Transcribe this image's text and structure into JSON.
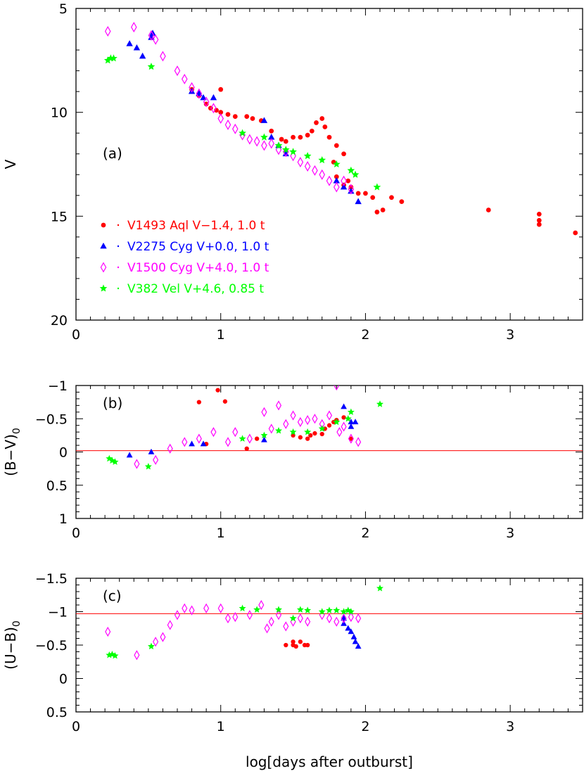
{
  "chart_data": [
    {
      "type": "scatter",
      "panel": "(a)",
      "ylabel": "V",
      "xlabel": "",
      "xlim": [
        0,
        3.5
      ],
      "ylim": [
        20,
        5
      ],
      "y_inverted": true,
      "xticks": [
        "0",
        "1",
        "2",
        "3"
      ],
      "yticks": [
        "5",
        "10",
        "15",
        "20"
      ],
      "legend_position": "lower-left",
      "series": [
        {
          "name": "V1493 Aql V−1.4, 1.0 t",
          "marker": "circle",
          "color": "#ff0000",
          "points": [
            [
              0.8,
              8.9
            ],
            [
              0.85,
              9.2
            ],
            [
              0.9,
              9.6
            ],
            [
              0.93,
              9.8
            ],
            [
              0.97,
              9.9
            ],
            [
              1.0,
              8.9
            ],
            [
              1.0,
              10.0
            ],
            [
              1.05,
              10.1
            ],
            [
              1.1,
              10.2
            ],
            [
              1.18,
              10.2
            ],
            [
              1.22,
              10.3
            ],
            [
              1.28,
              10.4
            ],
            [
              1.35,
              10.9
            ],
            [
              1.42,
              11.3
            ],
            [
              1.45,
              11.4
            ],
            [
              1.5,
              11.2
            ],
            [
              1.55,
              11.2
            ],
            [
              1.6,
              11.1
            ],
            [
              1.63,
              10.9
            ],
            [
              1.66,
              10.5
            ],
            [
              1.7,
              10.3
            ],
            [
              1.72,
              10.7
            ],
            [
              1.75,
              11.2
            ],
            [
              1.8,
              11.6
            ],
            [
              1.85,
              12.0
            ],
            [
              1.78,
              12.4
            ],
            [
              1.8,
              13.1
            ],
            [
              1.85,
              13.5
            ],
            [
              1.88,
              13.3
            ],
            [
              1.9,
              13.6
            ],
            [
              1.95,
              13.9
            ],
            [
              2.0,
              13.9
            ],
            [
              2.05,
              14.1
            ],
            [
              2.08,
              14.8
            ],
            [
              2.12,
              14.7
            ],
            [
              2.18,
              14.1
            ],
            [
              2.25,
              14.3
            ],
            [
              2.85,
              14.7
            ],
            [
              3.2,
              14.9
            ],
            [
              3.2,
              15.2
            ],
            [
              3.2,
              15.4
            ],
            [
              3.45,
              15.8
            ]
          ]
        },
        {
          "name": "V2275 Cyg V+0.0, 1.0 t",
          "marker": "triangle",
          "color": "#0000ff",
          "points": [
            [
              0.37,
              6.7
            ],
            [
              0.42,
              6.9
            ],
            [
              0.46,
              7.3
            ],
            [
              0.52,
              6.4
            ],
            [
              0.53,
              6.2
            ],
            [
              0.8,
              9.0
            ],
            [
              0.85,
              9.1
            ],
            [
              0.88,
              9.3
            ],
            [
              0.95,
              9.3
            ],
            [
              1.3,
              10.4
            ],
            [
              1.35,
              11.2
            ],
            [
              1.4,
              11.6
            ],
            [
              1.45,
              12.0
            ],
            [
              1.8,
              13.3
            ],
            [
              1.85,
              13.6
            ],
            [
              1.9,
              13.8
            ],
            [
              1.95,
              14.3
            ]
          ]
        },
        {
          "name": "V1500 Cyg V+4.0, 1.0 t",
          "marker": "diamond",
          "color": "#ff00ff",
          "points": [
            [
              0.22,
              6.1
            ],
            [
              0.4,
              5.9
            ],
            [
              0.52,
              6.3
            ],
            [
              0.55,
              6.5
            ],
            [
              0.6,
              7.3
            ],
            [
              0.7,
              8.0
            ],
            [
              0.75,
              8.4
            ],
            [
              0.8,
              8.8
            ],
            [
              0.85,
              9.1
            ],
            [
              0.9,
              9.5
            ],
            [
              0.95,
              9.8
            ],
            [
              1.0,
              10.3
            ],
            [
              1.05,
              10.6
            ],
            [
              1.1,
              10.8
            ],
            [
              1.15,
              11.1
            ],
            [
              1.2,
              11.3
            ],
            [
              1.25,
              11.4
            ],
            [
              1.3,
              11.6
            ],
            [
              1.35,
              11.5
            ],
            [
              1.4,
              11.8
            ],
            [
              1.45,
              11.9
            ],
            [
              1.5,
              12.1
            ],
            [
              1.55,
              12.4
            ],
            [
              1.6,
              12.6
            ],
            [
              1.65,
              12.8
            ],
            [
              1.7,
              13.0
            ],
            [
              1.75,
              13.3
            ],
            [
              1.8,
              13.6
            ],
            [
              1.85,
              13.3
            ],
            [
              1.9,
              13.7
            ]
          ]
        },
        {
          "name": "V382 Vel V+4.6, 0.85 t",
          "marker": "star",
          "color": "#00ff00",
          "points": [
            [
              0.22,
              7.5
            ],
            [
              0.24,
              7.4
            ],
            [
              0.26,
              7.4
            ],
            [
              0.52,
              7.8
            ],
            [
              1.15,
              11.0
            ],
            [
              1.3,
              11.2
            ],
            [
              1.4,
              11.6
            ],
            [
              1.45,
              11.8
            ],
            [
              1.5,
              11.9
            ],
            [
              1.6,
              12.1
            ],
            [
              1.7,
              12.3
            ],
            [
              1.8,
              12.5
            ],
            [
              1.9,
              12.8
            ],
            [
              1.93,
              13.0
            ],
            [
              2.08,
              13.6
            ]
          ]
        }
      ]
    },
    {
      "type": "scatter",
      "panel": "(b)",
      "ylabel": "(B−V)",
      "ylabel_sub": "0",
      "xlim": [
        0,
        3.5
      ],
      "ylim": [
        1,
        -1
      ],
      "y_inverted": true,
      "xticks": [
        "0",
        "1",
        "2",
        "3"
      ],
      "yticks": [
        "−1",
        "−0.5",
        "0",
        "0.5",
        "1"
      ],
      "reference_line": -0.02,
      "series": [
        {
          "name": "V1493 Aql",
          "marker": "circle",
          "color": "#ff0000",
          "points": [
            [
              0.85,
              -0.75
            ],
            [
              0.98,
              -0.93
            ],
            [
              1.03,
              -0.76
            ],
            [
              0.9,
              -0.12
            ],
            [
              1.18,
              -0.05
            ],
            [
              1.25,
              -0.2
            ],
            [
              1.5,
              -0.25
            ],
            [
              1.55,
              -0.22
            ],
            [
              1.6,
              -0.2
            ],
            [
              1.62,
              -0.25
            ],
            [
              1.65,
              -0.28
            ],
            [
              1.7,
              -0.27
            ],
            [
              1.72,
              -0.35
            ],
            [
              1.75,
              -0.4
            ],
            [
              1.78,
              -0.45
            ],
            [
              1.8,
              -0.48
            ],
            [
              1.85,
              -0.52
            ],
            [
              1.9,
              -0.2
            ]
          ]
        },
        {
          "name": "V2275 Cyg",
          "marker": "triangle",
          "color": "#0000ff",
          "points": [
            [
              0.37,
              0.05
            ],
            [
              0.52,
              0.0
            ],
            [
              0.8,
              -0.12
            ],
            [
              0.88,
              -0.12
            ],
            [
              1.3,
              -0.18
            ],
            [
              1.85,
              -0.68
            ],
            [
              1.9,
              -0.45
            ],
            [
              1.93,
              -0.45
            ],
            [
              1.9,
              -0.38
            ]
          ]
        },
        {
          "name": "V1500 Cyg",
          "marker": "diamond",
          "color": "#ff00ff",
          "points": [
            [
              0.42,
              0.18
            ],
            [
              0.55,
              0.12
            ],
            [
              0.65,
              -0.05
            ],
            [
              0.75,
              -0.15
            ],
            [
              0.85,
              -0.2
            ],
            [
              0.95,
              -0.3
            ],
            [
              1.05,
              -0.15
            ],
            [
              1.1,
              -0.3
            ],
            [
              1.2,
              -0.2
            ],
            [
              1.3,
              -0.6
            ],
            [
              1.35,
              -0.35
            ],
            [
              1.4,
              -0.7
            ],
            [
              1.45,
              -0.42
            ],
            [
              1.5,
              -0.55
            ],
            [
              1.55,
              -0.45
            ],
            [
              1.6,
              -0.48
            ],
            [
              1.65,
              -0.5
            ],
            [
              1.7,
              -0.42
            ],
            [
              1.75,
              -0.55
            ],
            [
              1.8,
              -1.0
            ],
            [
              1.82,
              -0.3
            ],
            [
              1.85,
              -0.38
            ],
            [
              1.9,
              -0.2
            ],
            [
              1.95,
              -0.15
            ]
          ]
        },
        {
          "name": "V382 Vel",
          "marker": "star",
          "color": "#00ff00",
          "points": [
            [
              0.23,
              0.1
            ],
            [
              0.25,
              0.13
            ],
            [
              0.27,
              0.15
            ],
            [
              0.5,
              0.22
            ],
            [
              1.15,
              -0.2
            ],
            [
              1.3,
              -0.25
            ],
            [
              1.4,
              -0.32
            ],
            [
              1.5,
              -0.3
            ],
            [
              1.6,
              -0.3
            ],
            [
              1.7,
              -0.35
            ],
            [
              1.8,
              -0.45
            ],
            [
              1.88,
              -0.5
            ],
            [
              1.9,
              -0.6
            ],
            [
              2.1,
              -0.72
            ]
          ]
        }
      ]
    },
    {
      "type": "scatter",
      "panel": "(c)",
      "ylabel": "(U−B)",
      "ylabel_sub": "0",
      "xlabel": "log[days after outburst]",
      "xlim": [
        0,
        3.5
      ],
      "ylim": [
        0.5,
        -1.5
      ],
      "y_inverted": true,
      "xticks": [
        "0",
        "1",
        "2",
        "3"
      ],
      "yticks": [
        "−1.5",
        "−1",
        "−0.5",
        "0",
        "0.5"
      ],
      "reference_line": -0.97,
      "series": [
        {
          "name": "V1493 Aql",
          "marker": "circle",
          "color": "#ff0000",
          "points": [
            [
              1.45,
              -0.5
            ],
            [
              1.5,
              -0.55
            ],
            [
              1.5,
              -0.5
            ],
            [
              1.52,
              -0.48
            ],
            [
              1.55,
              -0.55
            ],
            [
              1.58,
              -0.5
            ],
            [
              1.6,
              -0.5
            ]
          ]
        },
        {
          "name": "V2275 Cyg",
          "marker": "triangle",
          "color": "#0000ff",
          "points": [
            [
              1.85,
              -0.9
            ],
            [
              1.88,
              -0.75
            ],
            [
              1.9,
              -0.7
            ],
            [
              1.85,
              -0.82
            ],
            [
              1.92,
              -0.62
            ],
            [
              1.93,
              -0.55
            ],
            [
              1.95,
              -0.48
            ]
          ]
        },
        {
          "name": "V1500 Cyg",
          "marker": "diamond",
          "color": "#ff00ff",
          "points": [
            [
              0.22,
              -0.7
            ],
            [
              0.42,
              -0.35
            ],
            [
              0.55,
              -0.55
            ],
            [
              0.6,
              -0.62
            ],
            [
              0.65,
              -0.8
            ],
            [
              0.7,
              -0.95
            ],
            [
              0.75,
              -1.05
            ],
            [
              0.8,
              -1.02
            ],
            [
              0.9,
              -1.05
            ],
            [
              1.0,
              -1.05
            ],
            [
              1.05,
              -0.9
            ],
            [
              1.1,
              -0.92
            ],
            [
              1.2,
              -0.95
            ],
            [
              1.28,
              -1.1
            ],
            [
              1.32,
              -0.75
            ],
            [
              1.35,
              -0.85
            ],
            [
              1.4,
              -0.95
            ],
            [
              1.45,
              -0.78
            ],
            [
              1.5,
              -0.85
            ],
            [
              1.55,
              -0.9
            ],
            [
              1.6,
              -0.85
            ],
            [
              1.7,
              -0.95
            ],
            [
              1.75,
              -0.9
            ],
            [
              1.8,
              -0.85
            ],
            [
              1.85,
              -0.9
            ],
            [
              1.9,
              -0.92
            ],
            [
              1.95,
              -0.9
            ]
          ]
        },
        {
          "name": "V382 Vel",
          "marker": "star",
          "color": "#00ff00",
          "points": [
            [
              0.23,
              -0.35
            ],
            [
              0.25,
              -0.36
            ],
            [
              0.27,
              -0.34
            ],
            [
              0.52,
              -0.48
            ],
            [
              1.15,
              -1.05
            ],
            [
              1.25,
              -1.03
            ],
            [
              1.4,
              -1.03
            ],
            [
              1.5,
              -0.9
            ],
            [
              1.55,
              -1.03
            ],
            [
              1.6,
              -1.02
            ],
            [
              1.7,
              -1.0
            ],
            [
              1.75,
              -1.02
            ],
            [
              1.8,
              -1.02
            ],
            [
              1.85,
              -1.0
            ],
            [
              1.88,
              -1.02
            ],
            [
              1.9,
              -1.0
            ],
            [
              2.1,
              -1.35
            ]
          ]
        }
      ]
    }
  ]
}
